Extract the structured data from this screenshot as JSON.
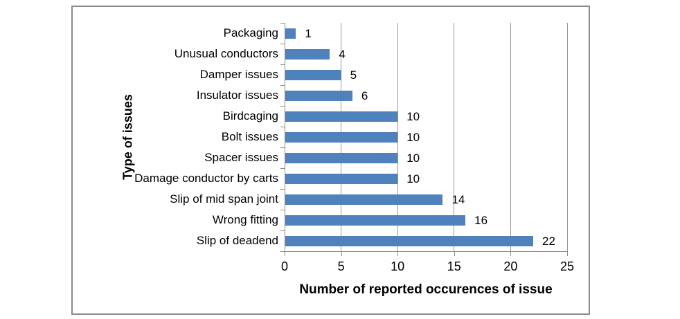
{
  "chart_data": {
    "type": "bar",
    "orientation": "horizontal",
    "title": "",
    "xlabel": "Number of reported occurences of issue",
    "ylabel": "Type of issues",
    "categories": [
      "Packaging",
      "Unusual conductors",
      "Damper issues",
      "Insulator issues",
      "Birdcaging",
      "Bolt issues",
      "Spacer issues",
      "Damage conductor by carts",
      "Slip of mid span joint",
      "Wrong fitting",
      "Slip of deadend"
    ],
    "values": [
      1,
      4,
      5,
      6,
      10,
      10,
      10,
      10,
      14,
      16,
      22
    ],
    "data_labels": [
      1,
      4,
      5,
      6,
      10,
      10,
      10,
      10,
      14,
      16,
      22
    ],
    "xlim": [
      0,
      25
    ],
    "xticks": [
      0,
      5,
      10,
      15,
      20,
      25
    ],
    "grid": "vertical",
    "legend": "none",
    "colors": {
      "bar": "#4f81bd",
      "gridline": "#969696",
      "axis": "#8c8c8c",
      "frame_border": "#8c8c8c",
      "text": "#000000"
    }
  }
}
